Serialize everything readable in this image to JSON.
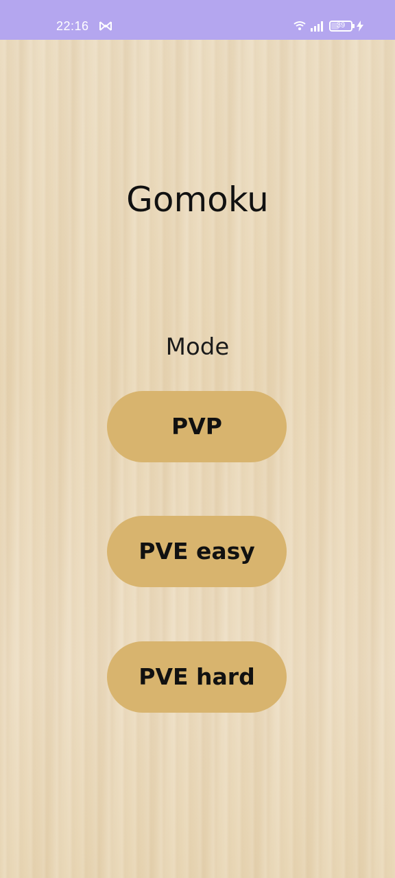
{
  "status_bar": {
    "time": "22:16",
    "battery_level": "39",
    "colors": {
      "background": "#b4a6ef",
      "foreground": "#ffffff"
    }
  },
  "main": {
    "title": "Gomoku",
    "mode_label": "Mode",
    "buttons": [
      {
        "label": "PVP"
      },
      {
        "label": "PVE easy"
      },
      {
        "label": "PVE hard"
      }
    ]
  },
  "colors": {
    "button_background": "#d8b46e",
    "wood_background": "#ead9b8",
    "text": "#111111"
  }
}
